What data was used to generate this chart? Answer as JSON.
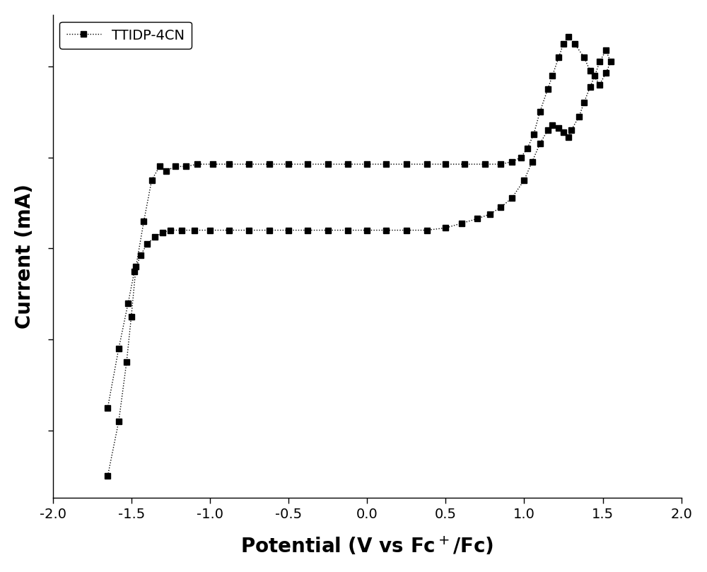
{
  "title": "",
  "xlabel": "Potential (V vs Fc$^+$/Fc)",
  "ylabel": "Current (mA)",
  "xlim": [
    -2.0,
    2.0
  ],
  "ylim_auto": true,
  "xticks": [
    -2.0,
    -1.5,
    -1.0,
    -0.5,
    0.0,
    0.5,
    1.0,
    1.5,
    2.0
  ],
  "legend_label": "TTIDP-4CN",
  "line_color": "black",
  "marker": "s",
  "markersize": 6,
  "linewidth": 1.0,
  "linestyle": ":",
  "background_color": "white",
  "cv_data": {
    "x": [
      -1.65,
      -1.58,
      -1.53,
      -1.5,
      -1.47,
      -1.42,
      -1.37,
      -1.32,
      -1.28,
      -1.22,
      -1.15,
      -1.08,
      -0.98,
      -0.88,
      -0.75,
      -0.62,
      -0.5,
      -0.38,
      -0.25,
      -0.12,
      0.0,
      0.12,
      0.25,
      0.38,
      0.5,
      0.62,
      0.75,
      0.85,
      0.92,
      0.98,
      1.02,
      1.06,
      1.1,
      1.15,
      1.18,
      1.22,
      1.25,
      1.28,
      1.32,
      1.38,
      1.42,
      1.48,
      1.52,
      1.55,
      1.52,
      1.48,
      1.45,
      1.42,
      1.38,
      1.35,
      1.3,
      1.28,
      1.25,
      1.22,
      1.18,
      1.15,
      1.1,
      1.05,
      1.0,
      0.92,
      0.85,
      0.78,
      0.7,
      0.6,
      0.5,
      0.38,
      0.25,
      0.12,
      0.0,
      -0.12,
      -0.25,
      -0.38,
      -0.5,
      -0.62,
      -0.75,
      -0.88,
      -1.0,
      -1.1,
      -1.18,
      -1.25,
      -1.3,
      -1.35,
      -1.4,
      -1.44,
      -1.48,
      -1.52,
      -1.58,
      -1.65
    ],
    "y": [
      -5.0,
      -3.8,
      -2.5,
      -1.5,
      -0.4,
      0.6,
      1.5,
      1.8,
      1.7,
      1.8,
      1.8,
      1.85,
      1.85,
      1.85,
      1.85,
      1.85,
      1.85,
      1.85,
      1.85,
      1.85,
      1.85,
      1.85,
      1.85,
      1.85,
      1.85,
      1.85,
      1.85,
      1.85,
      1.9,
      2.0,
      2.2,
      2.5,
      3.0,
      3.5,
      3.8,
      4.2,
      4.5,
      4.65,
      4.5,
      4.2,
      3.9,
      3.6,
      3.85,
      4.1,
      4.35,
      4.1,
      3.8,
      3.55,
      3.2,
      2.9,
      2.6,
      2.45,
      2.55,
      2.65,
      2.7,
      2.6,
      2.3,
      1.9,
      1.5,
      1.1,
      0.9,
      0.75,
      0.65,
      0.55,
      0.45,
      0.4,
      0.4,
      0.4,
      0.4,
      0.4,
      0.4,
      0.4,
      0.4,
      0.4,
      0.4,
      0.4,
      0.4,
      0.4,
      0.4,
      0.4,
      0.35,
      0.25,
      0.1,
      -0.15,
      -0.5,
      -1.2,
      -2.2,
      -3.5
    ]
  }
}
